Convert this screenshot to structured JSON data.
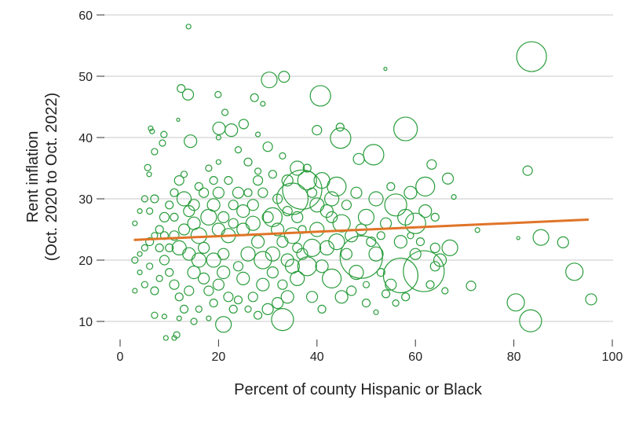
{
  "chart_data": {
    "type": "scatter",
    "title": "",
    "xlabel": "Percent of county Hispanic or Black",
    "ylabel_lines": [
      "Rent inflation",
      "(Oct. 2020 to Oct. 2022)"
    ],
    "xlim": [
      0,
      100
    ],
    "ylim": [
      10,
      60
    ],
    "xticks": [
      0,
      20,
      40,
      60,
      80,
      100
    ],
    "yticks": [
      10,
      20,
      30,
      40,
      50,
      60
    ],
    "grid": "horizontal",
    "legend": "none",
    "colors": {
      "points": "#2a9d3c",
      "trendline": "#e07428",
      "grid": "#dcdcdc"
    },
    "point_format": [
      "x",
      "y",
      "relative_size"
    ],
    "points": [
      [
        13.9,
        58.1,
        3
      ],
      [
        83.6,
        53.2,
        19
      ],
      [
        53.9,
        51.2,
        2
      ],
      [
        30.3,
        49.4,
        10
      ],
      [
        33.3,
        49.9,
        7
      ],
      [
        40.7,
        46.8,
        13
      ],
      [
        12.4,
        48,
        5
      ],
      [
        13.8,
        47,
        7
      ],
      [
        19.9,
        47,
        4
      ],
      [
        27.3,
        46.5,
        5
      ],
      [
        29,
        45.5,
        3
      ],
      [
        11.8,
        42.9,
        2
      ],
      [
        21.3,
        44.1,
        4
      ],
      [
        20.1,
        41.5,
        8
      ],
      [
        22.6,
        41.2,
        8
      ],
      [
        25.1,
        42.2,
        6
      ],
      [
        40,
        41.2,
        6
      ],
      [
        44.7,
        41.7,
        5
      ],
      [
        44.8,
        39.9,
        13
      ],
      [
        58,
        41.4,
        15
      ],
      [
        6.2,
        41.5,
        3
      ],
      [
        6.5,
        41,
        3
      ],
      [
        8.9,
        40.5,
        4
      ],
      [
        8.6,
        39.1,
        4
      ],
      [
        7,
        37.7,
        4
      ],
      [
        14.3,
        39.4,
        8
      ],
      [
        5.6,
        35.1,
        4
      ],
      [
        5.9,
        34,
        3
      ],
      [
        82.8,
        34.6,
        6
      ],
      [
        63.3,
        35.6,
        6
      ],
      [
        66.6,
        33.3,
        7
      ],
      [
        51.5,
        37.2,
        13
      ],
      [
        48.5,
        36.5,
        7
      ],
      [
        67.8,
        30.3,
        3
      ],
      [
        80.9,
        23.6,
        2
      ],
      [
        72.6,
        24.9,
        3
      ],
      [
        85.5,
        23.7,
        10
      ],
      [
        90,
        22.9,
        7
      ],
      [
        92.3,
        18.1,
        11
      ],
      [
        71.3,
        15.8,
        6
      ],
      [
        80.4,
        13.1,
        11
      ],
      [
        83.4,
        10.1,
        14
      ],
      [
        95.7,
        13.6,
        7
      ],
      [
        61.7,
        18.2,
        26
      ],
      [
        49,
        20.5,
        27
      ],
      [
        57,
        17.5,
        22
      ],
      [
        21,
        9.5,
        10
      ],
      [
        33,
        10.3,
        14
      ],
      [
        11,
        7.3,
        3
      ],
      [
        9.3,
        7.3,
        3
      ],
      [
        11.5,
        7.8,
        4
      ],
      [
        37,
        31.5,
        25
      ],
      [
        35,
        30,
        20
      ],
      [
        31,
        27,
        12
      ],
      [
        28,
        33,
        6
      ],
      [
        26,
        36,
        5
      ],
      [
        30,
        38.5,
        6
      ],
      [
        33,
        37,
        4
      ],
      [
        36,
        35,
        9
      ],
      [
        38,
        33,
        12
      ],
      [
        41,
        33,
        10
      ],
      [
        43,
        30,
        9
      ],
      [
        45,
        26,
        11
      ],
      [
        47,
        24,
        8
      ],
      [
        50,
        27,
        10
      ],
      [
        52,
        30,
        9
      ],
      [
        54,
        26,
        7
      ],
      [
        56,
        29,
        14
      ],
      [
        58,
        27,
        10
      ],
      [
        60,
        26,
        13
      ],
      [
        62,
        28,
        8
      ],
      [
        64,
        27,
        5
      ],
      [
        55,
        32,
        5
      ],
      [
        59,
        31,
        8
      ],
      [
        62,
        32,
        12
      ],
      [
        48,
        31,
        7
      ],
      [
        44,
        32,
        12
      ],
      [
        42,
        28,
        8
      ],
      [
        40,
        25,
        9
      ],
      [
        39,
        22,
        11
      ],
      [
        41,
        19,
        8
      ],
      [
        43,
        17,
        12
      ],
      [
        45,
        14,
        8
      ],
      [
        47,
        15,
        6
      ],
      [
        50,
        13,
        5
      ],
      [
        52,
        11.5,
        3
      ],
      [
        55,
        16,
        7
      ],
      [
        58,
        14,
        5
      ],
      [
        63,
        16,
        5
      ],
      [
        65,
        20,
        8
      ],
      [
        67,
        22,
        10
      ],
      [
        64,
        22,
        6
      ],
      [
        60,
        21,
        7
      ],
      [
        52,
        21,
        9
      ],
      [
        53,
        18,
        5
      ],
      [
        48,
        18,
        9
      ],
      [
        46,
        21,
        7
      ],
      [
        44,
        23,
        10
      ],
      [
        38,
        19,
        12
      ],
      [
        36,
        17,
        9
      ],
      [
        34,
        14,
        8
      ],
      [
        32,
        13,
        7
      ],
      [
        30,
        12,
        7
      ],
      [
        28,
        11,
        5
      ],
      [
        27,
        14,
        6
      ],
      [
        25,
        17,
        8
      ],
      [
        24,
        19,
        6
      ],
      [
        26,
        21,
        9
      ],
      [
        28,
        23,
        8
      ],
      [
        29,
        20,
        11
      ],
      [
        31,
        21,
        9
      ],
      [
        33,
        23,
        7
      ],
      [
        35,
        24,
        10
      ],
      [
        34,
        20,
        8
      ],
      [
        36,
        22,
        6
      ],
      [
        37,
        25,
        5
      ],
      [
        32,
        25,
        8
      ],
      [
        30,
        27,
        7
      ],
      [
        27,
        26,
        9
      ],
      [
        25,
        28,
        8
      ],
      [
        23,
        29,
        6
      ],
      [
        24,
        31,
        7
      ],
      [
        26,
        31,
        5
      ],
      [
        22,
        33,
        5
      ],
      [
        20,
        31,
        7
      ],
      [
        19,
        29,
        8
      ],
      [
        18,
        27,
        10
      ],
      [
        20,
        25,
        8
      ],
      [
        22,
        24,
        9
      ],
      [
        21,
        21,
        7
      ],
      [
        19,
        20,
        9
      ],
      [
        17,
        22,
        7
      ],
      [
        16,
        24,
        10
      ],
      [
        15,
        26,
        8
      ],
      [
        14,
        28,
        7
      ],
      [
        13,
        30,
        9
      ],
      [
        12,
        33,
        6
      ],
      [
        11,
        31,
        5
      ],
      [
        10,
        29,
        5
      ],
      [
        9,
        27,
        6
      ],
      [
        8,
        25,
        5
      ],
      [
        7,
        24,
        4
      ],
      [
        6,
        23,
        5
      ],
      [
        5,
        22,
        4
      ],
      [
        4,
        21,
        3
      ],
      [
        3,
        20,
        4
      ],
      [
        3,
        26,
        3
      ],
      [
        4,
        28,
        3
      ],
      [
        5,
        30,
        4
      ],
      [
        6,
        28,
        4
      ],
      [
        7,
        30,
        5
      ],
      [
        8,
        22,
        5
      ],
      [
        9,
        20,
        6
      ],
      [
        10,
        18,
        5
      ],
      [
        11,
        16,
        6
      ],
      [
        12,
        14,
        5
      ],
      [
        13,
        12,
        5
      ],
      [
        14,
        15,
        6
      ],
      [
        15,
        18,
        8
      ],
      [
        16,
        20,
        9
      ],
      [
        17,
        17,
        7
      ],
      [
        18,
        15,
        6
      ],
      [
        19,
        13,
        5
      ],
      [
        20,
        16,
        7
      ],
      [
        21,
        18,
        8
      ],
      [
        22,
        14,
        6
      ],
      [
        23,
        12,
        5
      ],
      [
        16,
        12,
        4
      ],
      [
        14,
        21,
        8
      ],
      [
        12,
        22,
        9
      ],
      [
        13,
        25,
        7
      ],
      [
        11,
        24,
        6
      ],
      [
        10,
        22,
        5
      ],
      [
        9,
        24,
        5
      ],
      [
        8,
        17,
        4
      ],
      [
        7,
        15,
        5
      ],
      [
        6,
        19,
        4
      ],
      [
        5,
        16,
        4
      ],
      [
        4,
        18,
        3
      ],
      [
        3,
        15,
        3
      ],
      [
        7,
        11,
        4
      ],
      [
        9,
        10.8,
        3
      ],
      [
        12,
        10.5,
        3
      ],
      [
        15,
        10,
        4
      ],
      [
        18,
        10.5,
        3
      ],
      [
        24,
        13.5,
        5
      ],
      [
        26,
        12,
        4
      ],
      [
        29,
        16,
        8
      ],
      [
        31,
        18,
        7
      ],
      [
        33,
        16,
        6
      ],
      [
        35,
        19,
        9
      ],
      [
        37,
        21,
        7
      ],
      [
        39,
        14,
        7
      ],
      [
        41,
        12,
        5
      ],
      [
        42,
        22,
        9
      ],
      [
        43,
        27,
        7
      ],
      [
        40,
        29,
        9
      ],
      [
        39,
        31,
        6
      ],
      [
        38,
        35,
        5
      ],
      [
        34,
        33,
        7
      ],
      [
        32,
        30,
        6
      ],
      [
        29,
        31,
        6
      ],
      [
        27,
        29,
        7
      ],
      [
        25,
        25,
        8
      ],
      [
        23,
        26,
        6
      ],
      [
        21,
        27,
        7
      ],
      [
        19,
        33,
        5
      ],
      [
        17,
        31,
        6
      ],
      [
        15,
        29,
        7
      ],
      [
        13,
        34,
        4
      ],
      [
        11,
        27,
        5
      ],
      [
        16,
        32,
        5
      ],
      [
        18,
        35,
        4
      ],
      [
        20,
        36,
        3
      ],
      [
        28,
        34.5,
        4
      ],
      [
        31,
        34,
        5
      ],
      [
        34,
        28,
        6
      ],
      [
        36,
        27,
        7
      ],
      [
        46,
        29,
        6
      ],
      [
        49,
        25,
        7
      ],
      [
        51,
        23,
        6
      ],
      [
        53,
        24,
        5
      ],
      [
        57,
        23,
        8
      ],
      [
        59,
        24,
        4
      ],
      [
        61,
        23,
        5
      ],
      [
        64,
        19,
        6
      ],
      [
        56,
        13,
        4
      ],
      [
        54,
        14.5,
        5
      ],
      [
        66,
        15,
        4
      ],
      [
        50,
        16,
        4
      ],
      [
        20,
        40,
        3
      ],
      [
        24,
        38,
        4
      ],
      [
        28,
        40.5,
        3
      ]
    ],
    "trendline": {
      "x": [
        3,
        95
      ],
      "y": [
        23.3,
        26.6
      ]
    }
  }
}
